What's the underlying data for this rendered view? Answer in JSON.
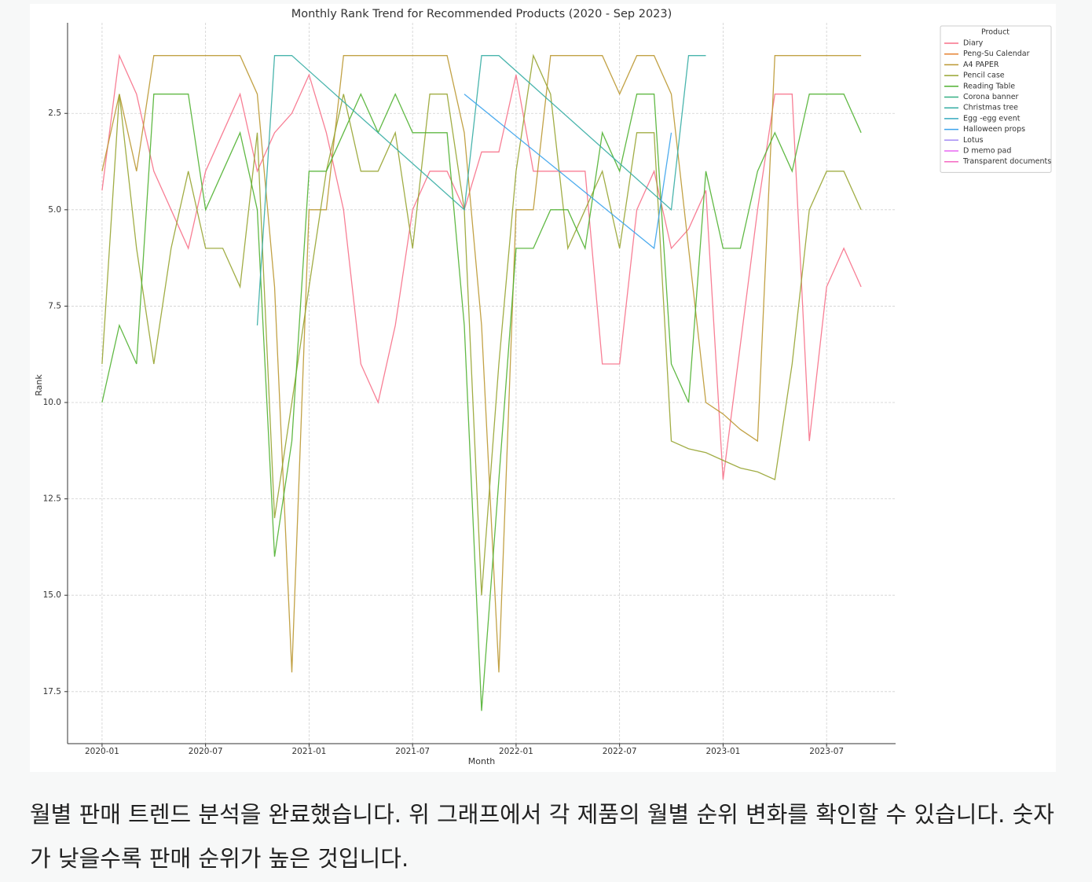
{
  "chart_data": {
    "type": "line",
    "title": "Monthly Rank Trend for Recommended Products (2020 - Sep 2023)",
    "x_label": "Month",
    "y_label": "Rank",
    "xlim": [
      "2019-11",
      "2023-11"
    ],
    "xticks": [
      "2020-01",
      "2020-07",
      "2021-01",
      "2021-07",
      "2022-01",
      "2022-07",
      "2023-01",
      "2023-07"
    ],
    "ylim": [
      18.85,
      0.15
    ],
    "yticks": [
      2.5,
      {
        "value": 5,
        "label": "5.0"
      },
      7.5,
      {
        "value": 10,
        "label": "10.0"
      },
      12.5,
      {
        "value": 15,
        "label": "15.0"
      },
      17.5
    ],
    "grid": true,
    "legend_title": "Product",
    "legend_position": "upper-right-outside",
    "series": [
      {
        "name": "Diary",
        "color": "#f77189",
        "x": [
          "2020-01",
          "2020-02",
          "2020-03",
          "2020-04",
          "2020-05",
          "2020-06",
          "2020-07",
          "2020-08",
          "2020-09",
          "2020-10",
          "2020-11",
          "2020-12",
          "2021-01",
          "2021-02",
          "2021-03",
          "2021-04",
          "2021-05",
          "2021-06",
          "2021-07",
          "2021-08",
          "2021-09",
          "2021-10",
          "2021-11",
          "2021-12",
          "2022-01",
          "2022-02",
          "2022-03",
          "2022-04",
          "2022-05",
          "2022-06",
          "2022-07",
          "2022-08",
          "2022-09",
          "2022-10",
          "2022-11",
          "2022-12",
          "2023-01",
          "2023-02",
          "2023-03",
          "2023-04",
          "2023-05",
          "2023-06",
          "2023-07",
          "2023-08",
          "2023-09"
        ],
        "values": [
          4.5,
          1,
          2,
          4,
          5,
          6,
          4,
          3,
          2,
          4,
          3,
          2.5,
          1.5,
          3,
          5,
          9,
          10,
          8,
          5,
          4,
          4,
          5,
          3.5,
          3.5,
          1.5,
          4,
          4,
          4,
          4,
          9,
          9,
          5,
          4,
          6,
          5.5,
          4.5,
          12,
          8.5,
          5,
          2,
          2,
          11,
          7,
          6,
          7
        ]
      },
      {
        "name": "Peng-Su Calendar",
        "color": "#e68332",
        "x": [],
        "values": []
      },
      {
        "name": "A4 PAPER",
        "color": "#bb9832",
        "x": [
          "2020-01",
          "2020-02",
          "2020-03",
          "2020-04",
          "2020-05",
          "2020-06",
          "2020-07",
          "2020-08",
          "2020-09",
          "2020-10",
          "2020-11",
          "2020-12",
          "2021-01",
          "2021-02",
          "2021-03",
          "2021-04",
          "2021-05",
          "2021-06",
          "2021-07",
          "2021-08",
          "2021-09",
          "2021-10",
          "2021-11",
          "2021-12",
          "2022-01",
          "2022-02",
          "2022-03",
          "2022-04",
          "2022-05",
          "2022-06",
          "2022-07",
          "2022-08",
          "2022-09",
          "2022-10",
          "2022-11",
          "2022-12",
          "2023-01",
          "2023-02",
          "2023-03",
          "2023-04",
          "2023-05",
          "2023-06",
          "2023-07",
          "2023-08",
          "2023-09"
        ],
        "values": [
          4,
          2,
          4,
          1,
          1,
          1,
          1,
          1,
          1,
          2,
          7,
          17,
          5,
          5,
          1,
          1,
          1,
          1,
          1,
          1,
          1,
          3,
          8,
          17,
          5,
          5,
          1,
          1,
          1,
          1,
          2,
          1,
          1,
          2,
          6,
          10,
          10.3,
          10.7,
          11,
          1,
          1,
          1,
          1,
          1,
          1
        ]
      },
      {
        "name": "Pencil case",
        "color": "#97a431",
        "x": [
          "2020-01",
          "2020-02",
          "2020-03",
          "2020-04",
          "2020-05",
          "2020-06",
          "2020-07",
          "2020-08",
          "2020-09",
          "2020-10",
          "2020-11",
          "2020-12",
          "2021-01",
          "2021-02",
          "2021-03",
          "2021-04",
          "2021-05",
          "2021-06",
          "2021-07",
          "2021-08",
          "2021-09",
          "2021-10",
          "2021-11",
          "2021-12",
          "2022-01",
          "2022-02",
          "2022-03",
          "2022-04",
          "2022-05",
          "2022-06",
          "2022-07",
          "2022-08",
          "2022-09",
          "2022-10",
          "2022-11",
          "2022-12",
          "2023-01",
          "2023-02",
          "2023-03",
          "2023-04",
          "2023-05",
          "2023-06",
          "2023-07",
          "2023-08",
          "2023-09"
        ],
        "values": [
          9,
          2,
          6,
          9,
          6,
          4,
          6,
          6,
          7,
          3,
          13,
          10,
          7,
          4,
          2,
          4,
          4,
          3,
          6,
          2,
          2,
          5,
          15,
          9,
          4,
          1,
          2,
          6,
          5,
          4,
          6,
          3,
          3,
          11,
          11.2,
          11.3,
          11.5,
          11.7,
          11.8,
          12,
          9,
          5,
          4,
          4,
          5
        ]
      },
      {
        "name": "Reading Table",
        "color": "#50b131",
        "x": [
          "2020-01",
          "2020-02",
          "2020-03",
          "2020-04",
          "2020-05",
          "2020-06",
          "2020-07",
          "2020-08",
          "2020-09",
          "2020-10",
          "2020-11",
          "2020-12",
          "2021-01",
          "2021-02",
          "2021-03",
          "2021-04",
          "2021-05",
          "2021-06",
          "2021-07",
          "2021-08",
          "2021-09",
          "2021-10",
          "2021-11",
          "2021-12",
          "2022-01",
          "2022-02",
          "2022-03",
          "2022-04",
          "2022-05",
          "2022-06",
          "2022-07",
          "2022-08",
          "2022-09",
          "2022-10",
          "2022-11",
          "2022-12",
          "2023-01",
          "2023-02",
          "2023-03",
          "2023-04",
          "2023-05",
          "2023-06",
          "2023-07",
          "2023-08",
          "2023-09"
        ],
        "values": [
          10,
          8,
          9,
          2,
          2,
          2,
          5,
          4,
          3,
          5,
          14,
          11,
          4,
          4,
          3,
          2,
          3,
          2,
          3,
          3,
          3,
          8,
          18,
          12,
          6,
          6,
          5,
          5,
          6,
          3,
          4,
          2,
          2,
          9,
          10,
          4,
          6,
          6,
          4,
          3,
          4,
          2,
          2,
          2,
          3
        ]
      },
      {
        "name": "Corona banner",
        "color": "#34af84",
        "x": [],
        "values": []
      },
      {
        "name": "Christmas tree",
        "color": "#36ada4",
        "x": [
          "2020-10",
          "2020-11",
          "2020-12",
          "2021-10",
          "2021-11",
          "2021-12",
          "2022-10",
          "2022-11",
          "2022-12"
        ],
        "values": [
          8,
          1,
          1,
          5,
          1,
          1,
          5,
          1,
          1
        ]
      },
      {
        "name": "Egg -egg event",
        "color": "#38aabf",
        "x": [],
        "values": []
      },
      {
        "name": "Halloween props",
        "color": "#3ba3ec",
        "x": [
          "2021-10",
          "2022-09",
          "2022-10"
        ],
        "values": [
          2,
          6,
          3
        ]
      },
      {
        "name": "Lotus",
        "color": "#a48cf4",
        "x": [],
        "values": []
      },
      {
        "name": "D memo pad",
        "color": "#e867f4",
        "x": [],
        "values": []
      },
      {
        "name": "Transparent documents",
        "color": "#f668c2",
        "x": [],
        "values": []
      }
    ]
  },
  "message": {
    "text": "월별 판매 트렌드 분석을 완료했습니다. 위 그래프에서 각 제품의 월별 순위 변화를 확인할 수 있습니다. 숫자가 낮을수록 판매 순위가 높은 것입니다."
  }
}
